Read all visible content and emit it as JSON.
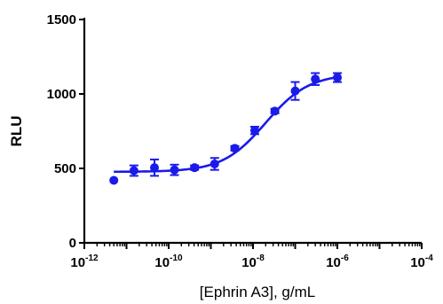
{
  "chart_data": {
    "type": "scatter",
    "title": "",
    "xlabel": "[Ephrin A3], g/mL",
    "ylabel": "RLU",
    "x_scale": "log10",
    "xlim": [
      1e-12,
      0.0001
    ],
    "ylim": [
      0,
      1500
    ],
    "x_tick_labels": [
      {
        "base": "10",
        "exp": "-12"
      },
      {
        "base": "10",
        "exp": "-10"
      },
      {
        "base": "10",
        "exp": "-8"
      },
      {
        "base": "10",
        "exp": "-6"
      },
      {
        "base": "10",
        "exp": "-4"
      }
    ],
    "x_tick_values": [
      1e-12,
      1e-10,
      1e-08,
      1e-06,
      0.0001
    ],
    "y_tick_labels": [
      "0",
      "500",
      "1000",
      "1500"
    ],
    "y_tick_values": [
      0,
      500,
      1000,
      1500
    ],
    "grid": false,
    "color": "#1a1aeb",
    "series": [
      {
        "x": [
          5e-12,
          1.5e-11,
          4.6e-11,
          1.37e-10,
          4.1e-10,
          1.23e-09,
          3.7e-09,
          1.1e-08,
          3.3e-08,
          1e-07,
          3e-07,
          1e-06
        ],
        "y": [
          420,
          485,
          505,
          490,
          505,
          530,
          635,
          755,
          885,
          1020,
          1100,
          1110
        ],
        "error": [
          0,
          35,
          55,
          35,
          15,
          40,
          15,
          25,
          15,
          60,
          40,
          30
        ],
        "marker": "circle"
      }
    ],
    "fit_curve": {
      "type": "four-parameter-logistic",
      "bottom": 477,
      "top": 1135,
      "log_ec50": -7.7,
      "hill_slope": 0.85
    }
  }
}
